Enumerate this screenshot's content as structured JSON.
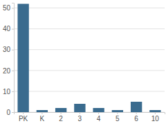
{
  "chart_data": {
    "type": "bar",
    "categories": [
      "PK",
      "K",
      "2",
      "3",
      "4",
      "5",
      "6",
      "10"
    ],
    "values": [
      52,
      1,
      2,
      4,
      2,
      1,
      5,
      1
    ],
    "color": "#3a6b8e",
    "ylim": [
      0,
      52.5
    ],
    "yticks": [
      0,
      10,
      20,
      30,
      40,
      50
    ],
    "grid": true
  }
}
